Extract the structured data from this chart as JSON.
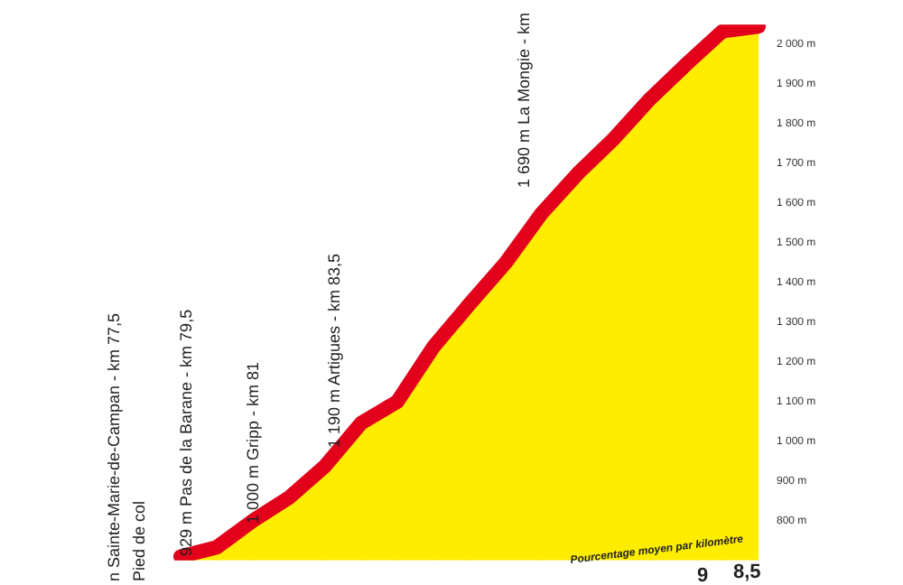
{
  "chart_data": {
    "type": "area",
    "categories": [
      null,
      null,
      null,
      null,
      null,
      null,
      null,
      null,
      null,
      null,
      null,
      null,
      null,
      null,
      null,
      null,
      null
    ],
    "series": [
      {
        "color": "#e2001a",
        "values": [
          710,
          733,
          800,
          858,
          938,
          1046,
          1100,
          1238,
          1346,
          1450,
          1575,
          1675,
          1763,
          1863,
          1950,
          2033,
          2045
        ]
      }
    ],
    "ylim": [
      700,
      2050
    ],
    "yticks": [
      {
        "value": 800,
        "label": "800 m"
      },
      {
        "value": 900,
        "label": "900 m"
      },
      {
        "value": 1000,
        "label": "1 000 m"
      },
      {
        "value": 1100,
        "label": "1 100 m"
      },
      {
        "value": 1200,
        "label": "1 200 m"
      },
      {
        "value": 1300,
        "label": "1 300 m"
      },
      {
        "value": 1400,
        "label": "1 400 m"
      },
      {
        "value": 1500,
        "label": "1 500 m"
      },
      {
        "value": 1600,
        "label": "1 600 m"
      },
      {
        "value": 1700,
        "label": "1 700 m"
      },
      {
        "value": 1800,
        "label": "1 800 m"
      },
      {
        "value": 1900,
        "label": "1 900 m"
      },
      {
        "value": 2000,
        "label": "2 000 m"
      }
    ],
    "tick_labels": "y",
    "grid": true,
    "marker": "none",
    "annotations": [
      "n Sainte-Marie-de-Campan - km 77,5",
      "Pied de col",
      "929 m Pas de la Barane - km 79,5",
      "1 000 m Gripp - km 81",
      "1 190 m Artigues - km 83,5",
      "1 690 m La Mongie - km",
      "Pourcentage moyen par kilomètre",
      "9",
      "8,5"
    ]
  }
}
